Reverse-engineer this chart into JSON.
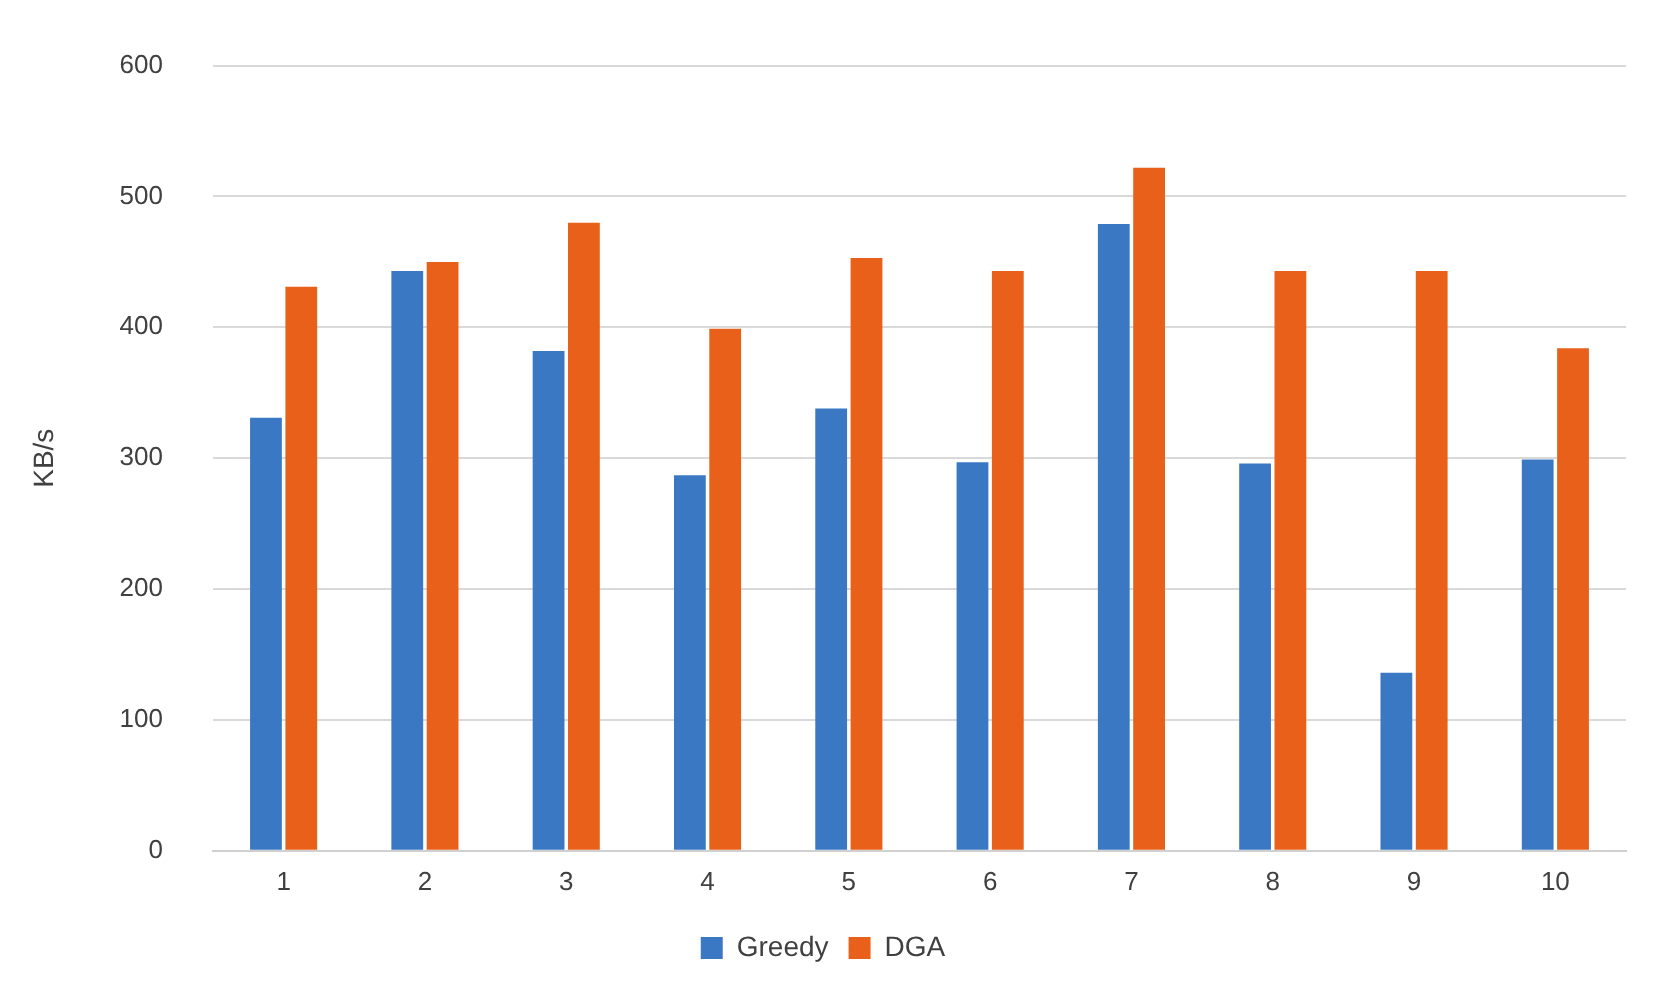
{
  "chart_data": {
    "type": "bar",
    "ylabel": "KB/s",
    "categories": [
      "1",
      "2",
      "3",
      "4",
      "5",
      "6",
      "7",
      "8",
      "9",
      "10"
    ],
    "series": [
      {
        "name": "Greedy",
        "color": "#3a78c4",
        "values": [
          331,
          443,
          382,
          287,
          338,
          297,
          479,
          296,
          136,
          299
        ]
      },
      {
        "name": "DGA",
        "color": "#e8601a",
        "values": [
          431,
          450,
          480,
          399,
          453,
          443,
          522,
          443,
          443,
          384
        ]
      }
    ],
    "ylim": [
      0,
      600
    ],
    "yticks": [
      0,
      100,
      200,
      300,
      400,
      500,
      600
    ],
    "grid": "y",
    "legend": "bottom"
  }
}
